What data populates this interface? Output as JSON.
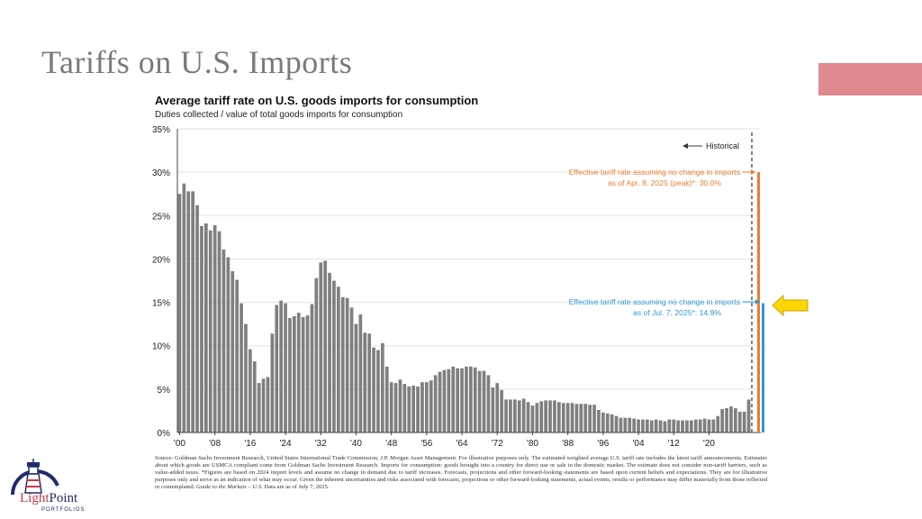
{
  "slide": {
    "title": "Tariffs on U.S. Imports",
    "accent_color": "#e08a8f"
  },
  "chart_data": {
    "type": "bar",
    "title": "Average tariff rate on U.S. goods imports for consumption",
    "subtitle": "Duties collected / value of total goods imports for consumption",
    "ylim": [
      0,
      35
    ],
    "yticks": [
      "0%",
      "5%",
      "10%",
      "15%",
      "20%",
      "25%",
      "30%",
      "35%"
    ],
    "ytick_values": [
      0,
      5,
      10,
      15,
      20,
      25,
      30,
      35
    ],
    "xticks": [
      "'00",
      "'08",
      "'16",
      "'24",
      "'32",
      "'40",
      "'48",
      "'56",
      "'64",
      "'72",
      "'80",
      "'88",
      "'96",
      "'04",
      "'12",
      "'20"
    ],
    "xtick_years": [
      1900,
      1908,
      1916,
      1924,
      1932,
      1940,
      1948,
      1956,
      1964,
      1972,
      1980,
      1988,
      1996,
      2004,
      2012,
      2020
    ],
    "grid": true,
    "series": [
      {
        "color": "#7f7f7f",
        "start_year": 1900,
        "values": [
          27.5,
          28.7,
          27.8,
          27.8,
          26.2,
          23.8,
          24.1,
          23.3,
          23.9,
          23.2,
          21.1,
          20.2,
          18.6,
          17.6,
          14.9,
          12.5,
          9.6,
          8.2,
          5.7,
          6.2,
          6.4,
          11.4,
          14.7,
          15.2,
          14.9,
          13.2,
          13.4,
          13.8,
          13.3,
          13.5,
          14.8,
          17.8,
          19.6,
          19.8,
          18.4,
          17.5,
          16.8,
          15.6,
          15.5,
          14.4,
          12.5,
          13.6,
          11.5,
          11.4,
          9.8,
          9.5,
          10.3,
          7.6,
          5.8,
          5.7,
          6.1,
          5.6,
          5.3,
          5.4,
          5.3,
          5.8,
          5.8,
          6.0,
          6.6,
          7.0,
          7.2,
          7.3,
          7.6,
          7.4,
          7.4,
          7.6,
          7.6,
          7.5,
          7.1,
          7.1,
          6.6,
          5.2,
          5.7,
          4.9,
          3.8,
          3.8,
          3.8,
          3.7,
          3.9,
          3.5,
          3.1,
          3.4,
          3.6,
          3.7,
          3.7,
          3.7,
          3.5,
          3.4,
          3.4,
          3.4,
          3.3,
          3.3,
          3.3,
          3.2,
          3.2,
          2.6,
          2.3,
          2.2,
          2.1,
          1.9,
          1.7,
          1.7,
          1.7,
          1.6,
          1.5,
          1.5,
          1.5,
          1.4,
          1.5,
          1.4,
          1.3,
          1.5,
          1.5,
          1.4,
          1.4,
          1.4,
          1.4,
          1.5,
          1.5,
          1.6,
          1.5,
          1.5,
          1.9,
          2.7,
          2.8,
          3.0,
          2.8,
          2.4,
          2.4,
          3.8
        ]
      }
    ],
    "scenarios": [
      {
        "value": 30.0,
        "color": "#ed7d31",
        "label_line1": "Effective tariff rate assuming no change in imports",
        "label_line2": "as of Apr. 8, 2025 (peak)*: 30.0%"
      },
      {
        "value": 14.9,
        "color": "#2e9ad6",
        "label_line1": "Effective tariff rate assuming no change in imports",
        "label_line2": "as of Jul. 7, 2025*: 14.9%"
      }
    ],
    "historical_label": "Historical"
  },
  "footnote": {
    "text_main": "Source: Goldman Sachs Investment Research, United States International Trade Commission, J.P. Morgan Asset Management. For illustrative purposes only. The estimated weighted average U.S. tariff rate includes the latest tariff announcements. Estimates about which goods are USMCA compliant come from Goldman Sachs Investment Research. Imports for consumption: goods brought into a country for direct use or sale in the domestic market. The estimate does not consider non-tariff barriers, such as value-added taxes. *Figures are based on 2024 import levels and assume no change in demand due to tariff increases. Forecasts, projections and other forward-looking statements are based upon current beliefs and expectations. They are for illustrative purposes only and serve as an indication of what may occur. Given the inherent uncertainties and risks associated with forecasts, projections or other forward-looking statements, actual events, results or performance may differ materially from those reflected or contemplated. ",
    "guide_italic": "Guide to the Markets – U.S.",
    "text_end": " Data are as of July 7, 2025."
  },
  "logo": {
    "part1": "Light",
    "part2": "Point",
    "sub": "PORTFOLIOS",
    "color_red": "#c53a4a",
    "color_navy": "#1f2b6c"
  },
  "callout_arrow": {
    "color": "#ffd700",
    "icon": "left-arrow-icon"
  }
}
